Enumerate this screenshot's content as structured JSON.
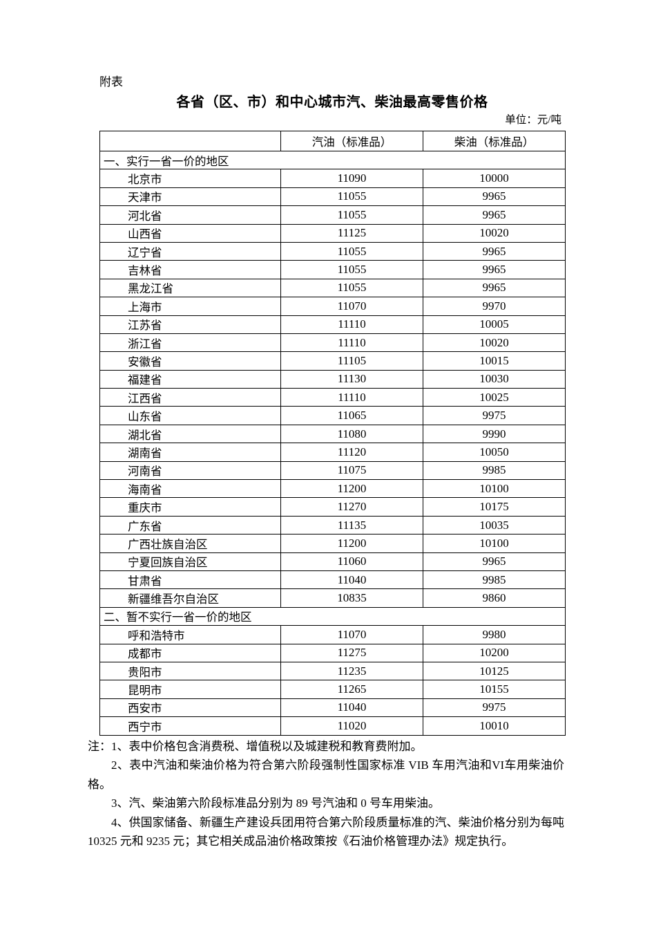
{
  "page": {
    "label": "附表",
    "title": "各省（区、市）和中心城市汽、柴油最高零售价格",
    "unit": "单位：元/吨"
  },
  "table": {
    "columns": [
      "",
      "汽油（标准品）",
      "柴油（标准品）"
    ],
    "sections": [
      {
        "header": "一、实行一省一价的地区",
        "rows": [
          {
            "region": "北京市",
            "gasoline": "11090",
            "diesel": "10000"
          },
          {
            "region": "天津市",
            "gasoline": "11055",
            "diesel": "9965"
          },
          {
            "region": "河北省",
            "gasoline": "11055",
            "diesel": "9965"
          },
          {
            "region": "山西省",
            "gasoline": "11125",
            "diesel": "10020"
          },
          {
            "region": "辽宁省",
            "gasoline": "11055",
            "diesel": "9965"
          },
          {
            "region": "吉林省",
            "gasoline": "11055",
            "diesel": "9965"
          },
          {
            "region": "黑龙江省",
            "gasoline": "11055",
            "diesel": "9965"
          },
          {
            "region": "上海市",
            "gasoline": "11070",
            "diesel": "9970"
          },
          {
            "region": "江苏省",
            "gasoline": "11110",
            "diesel": "10005"
          },
          {
            "region": "浙江省",
            "gasoline": "11110",
            "diesel": "10020"
          },
          {
            "region": "安徽省",
            "gasoline": "11105",
            "diesel": "10015"
          },
          {
            "region": "福建省",
            "gasoline": "11130",
            "diesel": "10030"
          },
          {
            "region": "江西省",
            "gasoline": "11110",
            "diesel": "10025"
          },
          {
            "region": "山东省",
            "gasoline": "11065",
            "diesel": "9975"
          },
          {
            "region": "湖北省",
            "gasoline": "11080",
            "diesel": "9990"
          },
          {
            "region": "湖南省",
            "gasoline": "11120",
            "diesel": "10050"
          },
          {
            "region": "河南省",
            "gasoline": "11075",
            "diesel": "9985"
          },
          {
            "region": "海南省",
            "gasoline": "11200",
            "diesel": "10100"
          },
          {
            "region": "重庆市",
            "gasoline": "11270",
            "diesel": "10175"
          },
          {
            "region": "广东省",
            "gasoline": "11135",
            "diesel": "10035"
          },
          {
            "region": "广西壮族自治区",
            "gasoline": "11200",
            "diesel": "10100"
          },
          {
            "region": "宁夏回族自治区",
            "gasoline": "11060",
            "diesel": "9965"
          },
          {
            "region": "甘肃省",
            "gasoline": "11040",
            "diesel": "9985"
          },
          {
            "region": "新疆维吾尔自治区",
            "gasoline": "10835",
            "diesel": "9860"
          }
        ]
      },
      {
        "header": "二、暂不实行一省一价的地区",
        "rows": [
          {
            "region": "呼和浩特市",
            "gasoline": "11070",
            "diesel": "9980"
          },
          {
            "region": "成都市",
            "gasoline": "11275",
            "diesel": "10200"
          },
          {
            "region": "贵阳市",
            "gasoline": "11235",
            "diesel": "10125"
          },
          {
            "region": "昆明市",
            "gasoline": "11265",
            "diesel": "10155"
          },
          {
            "region": "西安市",
            "gasoline": "11040",
            "diesel": "9975"
          },
          {
            "region": "西宁市",
            "gasoline": "11020",
            "diesel": "10010"
          }
        ]
      }
    ]
  },
  "notes": {
    "lines": [
      "注：1、表中价格包含消费税、增值税以及城建税和教育费附加。",
      "2、表中汽油和柴油价格为符合第六阶段强制性国家标准 VIB 车用汽油和VI车用柴油价格。",
      "3、汽、柴油第六阶段标准品分别为 89 号汽油和 0 号车用柴油。",
      "4、供国家储备、新疆生产建设兵团用符合第六阶段质量标准的汽、柴油价格分别为每吨 10325 元和 9235 元；其它相关成品油价格政策按《石油价格管理办法》规定执行。"
    ]
  }
}
